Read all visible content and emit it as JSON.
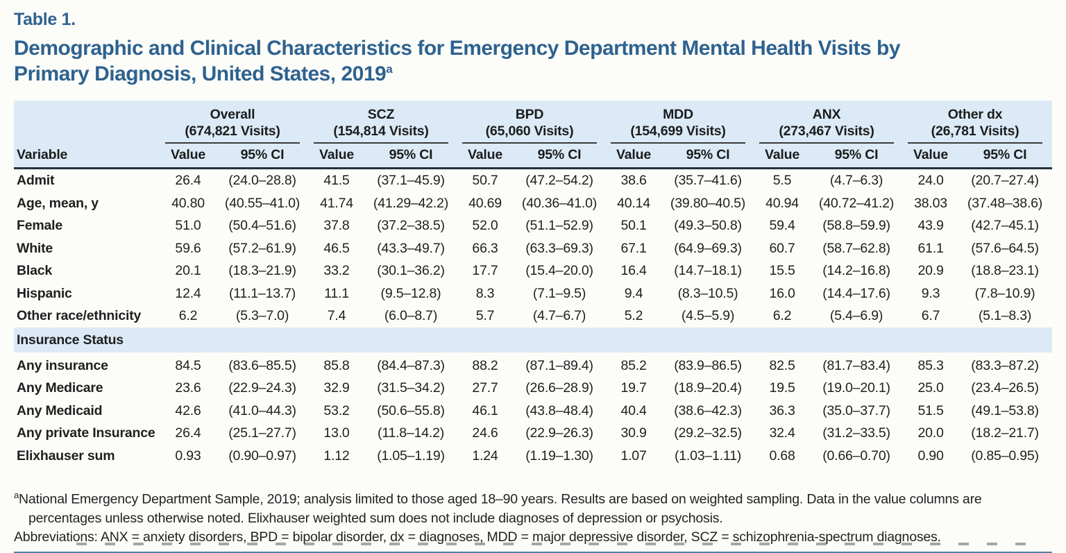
{
  "page": {
    "table_label": "Table 1.",
    "title_line1": "Demographic and Clinical Characteristics for Emergency Department Mental Health Visits by",
    "title_line2": "Primary Diagnosis, United States, 2019",
    "title_sup": "a"
  },
  "colors": {
    "accent_blue": "#2e628f",
    "band_blue": "#dbeaf6",
    "header_rule_dark": "#25313a",
    "bottom_rule_blue": "#55809f"
  },
  "table": {
    "variable_header": "Variable",
    "subheaders": {
      "value": "Value",
      "ci": "95% CI"
    },
    "groups": [
      {
        "name": "Overall",
        "visits": "(674,821 Visits)"
      },
      {
        "name": "SCZ",
        "visits": "(154,814 Visits)"
      },
      {
        "name": "BPD",
        "visits": "(65,060 Visits)"
      },
      {
        "name": "MDD",
        "visits": "(154,699 Visits)"
      },
      {
        "name": "ANX",
        "visits": "(273,467 Visits)"
      },
      {
        "name": "Other dx",
        "visits": "(26,781 Visits)"
      }
    ],
    "sections": [
      {
        "header": null,
        "rows": [
          {
            "label": "Admit",
            "cells": [
              "26.4",
              "(24.0–28.8)",
              "41.5",
              "(37.1–45.9)",
              "50.7",
              "(47.2–54.2)",
              "38.6",
              "(35.7–41.6)",
              "5.5",
              "(4.7–6.3)",
              "24.0",
              "(20.7–27.4)"
            ]
          },
          {
            "label": "Age, mean, y",
            "cells": [
              "40.80",
              "(40.55–41.0)",
              "41.74",
              "(41.29–42.2)",
              "40.69",
              "(40.36–41.0)",
              "40.14",
              "(39.80–40.5)",
              "40.94",
              "(40.72–41.2)",
              "38.03",
              "(37.48–38.6)"
            ]
          },
          {
            "label": "Female",
            "cells": [
              "51.0",
              "(50.4–51.6)",
              "37.8",
              "(37.2–38.5)",
              "52.0",
              "(51.1–52.9)",
              "50.1",
              "(49.3–50.8)",
              "59.4",
              "(58.8–59.9)",
              "43.9",
              "(42.7–45.1)"
            ]
          },
          {
            "label": "White",
            "cells": [
              "59.6",
              "(57.2–61.9)",
              "46.5",
              "(43.3–49.7)",
              "66.3",
              "(63.3–69.3)",
              "67.1",
              "(64.9–69.3)",
              "60.7",
              "(58.7–62.8)",
              "61.1",
              "(57.6–64.5)"
            ]
          },
          {
            "label": "Black",
            "cells": [
              "20.1",
              "(18.3–21.9)",
              "33.2",
              "(30.1–36.2)",
              "17.7",
              "(15.4–20.0)",
              "16.4",
              "(14.7–18.1)",
              "15.5",
              "(14.2–16.8)",
              "20.9",
              "(18.8–23.1)"
            ]
          },
          {
            "label": "Hispanic",
            "cells": [
              "12.4",
              "(11.1–13.7)",
              "11.1",
              "(9.5–12.8)",
              "8.3",
              "(7.1–9.5)",
              "9.4",
              "(8.3–10.5)",
              "16.0",
              "(14.4–17.6)",
              "9.3",
              "(7.8–10.9)"
            ]
          },
          {
            "label": "Other race/ethnicity",
            "cells": [
              "6.2",
              "(5.3–7.0)",
              "7.4",
              "(6.0–8.7)",
              "5.7",
              "(4.7–6.7)",
              "5.2",
              "(4.5–5.9)",
              "6.2",
              "(5.4–6.9)",
              "6.7",
              "(5.1–8.3)"
            ]
          }
        ]
      },
      {
        "header": "Insurance Status",
        "rows": [
          {
            "label": "Any insurance",
            "cells": [
              "84.5",
              "(83.6–85.5)",
              "85.8",
              "(84.4–87.3)",
              "88.2",
              "(87.1–89.4)",
              "85.2",
              "(83.9–86.5)",
              "82.5",
              "(81.7–83.4)",
              "85.3",
              "(83.3–87.2)"
            ]
          },
          {
            "label": "Any Medicare",
            "cells": [
              "23.6",
              "(22.9–24.3)",
              "32.9",
              "(31.5–34.2)",
              "27.7",
              "(26.6–28.9)",
              "19.7",
              "(18.9–20.4)",
              "19.5",
              "(19.0–20.1)",
              "25.0",
              "(23.4–26.5)"
            ]
          },
          {
            "label": "Any Medicaid",
            "cells": [
              "42.6",
              "(41.0–44.3)",
              "53.2",
              "(50.6–55.8)",
              "46.1",
              "(43.8–48.4)",
              "40.4",
              "(38.6–42.3)",
              "36.3",
              "(35.0–37.7)",
              "51.5",
              "(49.1–53.8)"
            ]
          },
          {
            "label": "Any private Insurance",
            "cells": [
              "26.4",
              "(25.1–27.7)",
              "13.0",
              "(11.8–14.2)",
              "24.6",
              "(22.9–26.3)",
              "30.9",
              "(29.2–32.5)",
              "32.4",
              "(31.2–33.5)",
              "20.0",
              "(18.2–21.7)"
            ]
          },
          {
            "label": "Elixhauser sum",
            "cells": [
              "0.93",
              "(0.90–0.97)",
              "1.12",
              "(1.05–1.19)",
              "1.24",
              "(1.19–1.30)",
              "1.07",
              "(1.03–1.11)",
              "0.68",
              "(0.66–0.70)",
              "0.90",
              "(0.85–0.95)"
            ]
          }
        ]
      }
    ]
  },
  "footnotes": {
    "marker": "a",
    "note_a": "National Emergency Department Sample, 2019; analysis limited to those aged 18–90 years. Results are based on weighted sampling. Data in the value columns are percentages unless otherwise noted. Elixhauser weighted sum does not include diagnoses of depression or psychosis.",
    "abbreviations": "Abbreviations: ANX = anxiety disorders, BPD = bipolar disorder, dx = diagnoses, MDD = major depressive disorder, SCZ = schizophrenia-spectrum diagnoses."
  }
}
